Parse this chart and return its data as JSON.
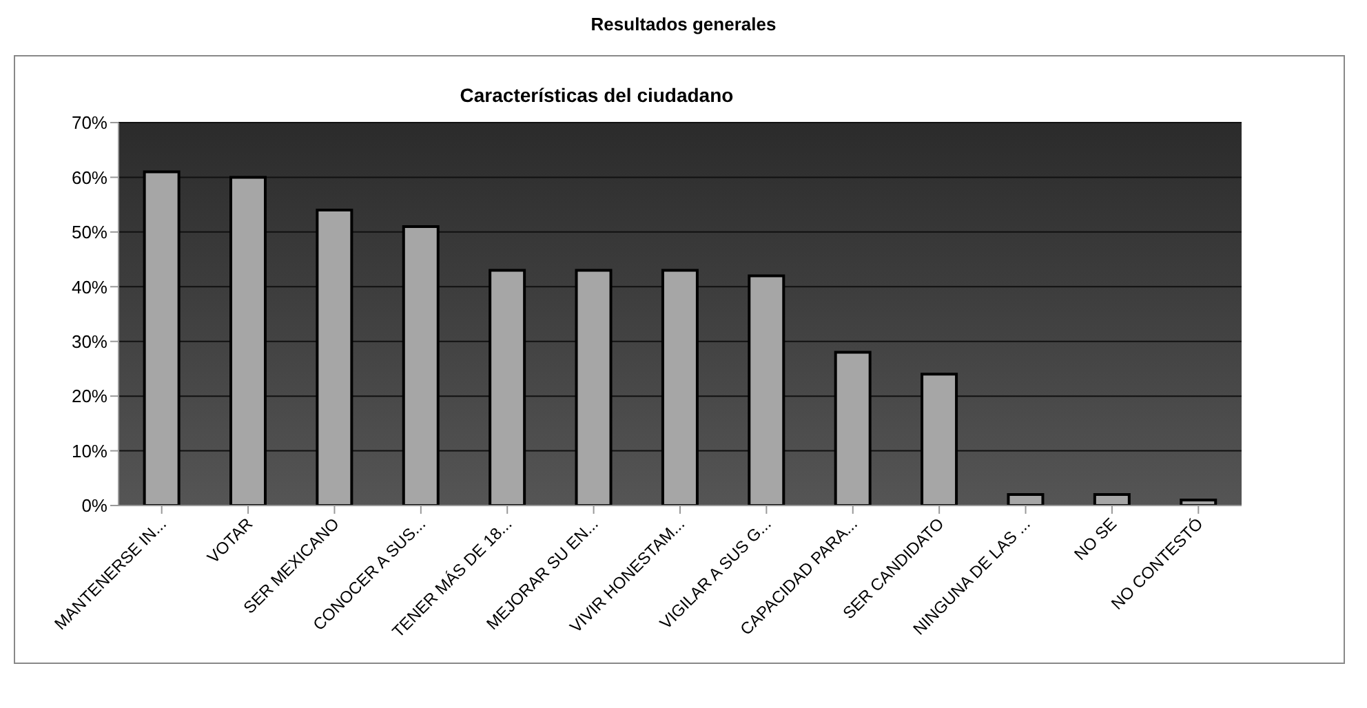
{
  "chart_data": {
    "type": "bar",
    "title": "Resultados generales",
    "subtitle": "Características del ciudadano",
    "categories": [
      "MANTENERSE IN...",
      "VOTAR",
      "SER MEXICANO",
      "CONOCER A SUS...",
      "TENER MÁS DE 18...",
      "MEJORAR SU EN...",
      "VIVIR HONESTAM...",
      "VIGILAR A SUS G...",
      "CAPACIDAD PARA...",
      "SER CANDIDATO",
      "NINGUNA DE LAS ...",
      "NO SE",
      "NO CONTESTÓ"
    ],
    "values": [
      61,
      60,
      54,
      51,
      43,
      43,
      43,
      42,
      28,
      24,
      2,
      2,
      1
    ],
    "color": "#a6a6a6",
    "ylim": [
      0,
      70
    ],
    "yticks": [
      {
        "value": 0,
        "label": "0%"
      },
      {
        "value": 10,
        "label": "10%"
      },
      {
        "value": 20,
        "label": "20%"
      },
      {
        "value": 30,
        "label": "30%"
      },
      {
        "value": 40,
        "label": "40%"
      },
      {
        "value": 50,
        "label": "50%"
      },
      {
        "value": 60,
        "label": "60%"
      },
      {
        "value": 70,
        "label": "70%"
      }
    ],
    "grid": "y",
    "legend": false
  }
}
